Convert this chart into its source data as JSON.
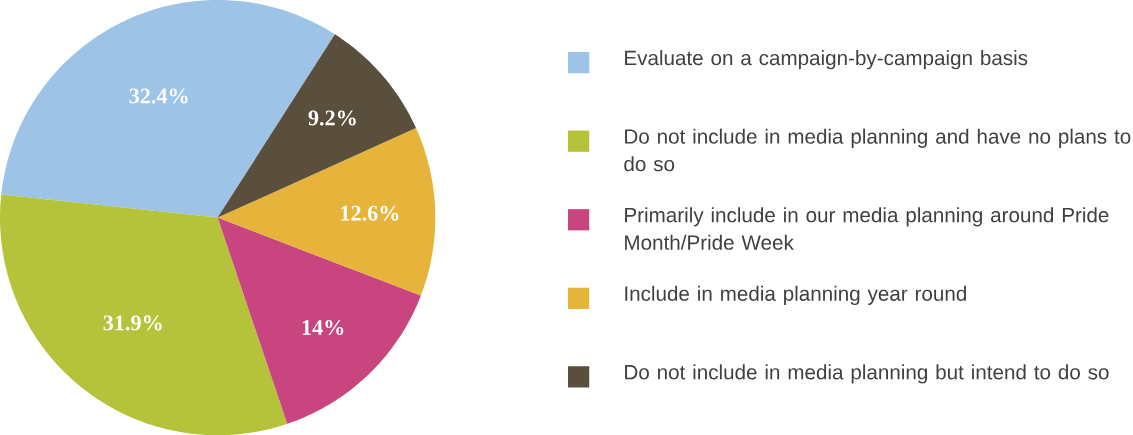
{
  "chart_data": {
    "type": "pie",
    "categories": [
      "Evaluate on a campaign-by-campaign basis",
      "Do not include in media planning and have no plans to do so",
      "Primarily include in our media planning around Pride Month/Pride Week",
      "Include in media planning year round",
      "Do not include in media planning but intend to do so"
    ],
    "values": [
      32.4,
      31.9,
      14,
      12.6,
      9.2
    ],
    "value_labels": [
      "32.4%",
      "31.9%",
      "14%",
      "12.6%",
      "9.2%"
    ],
    "colors": [
      "#9dc3e6",
      "#b5c33a",
      "#c9457f",
      "#e6b43a",
      "#5a4e3c"
    ],
    "legend": "right"
  }
}
